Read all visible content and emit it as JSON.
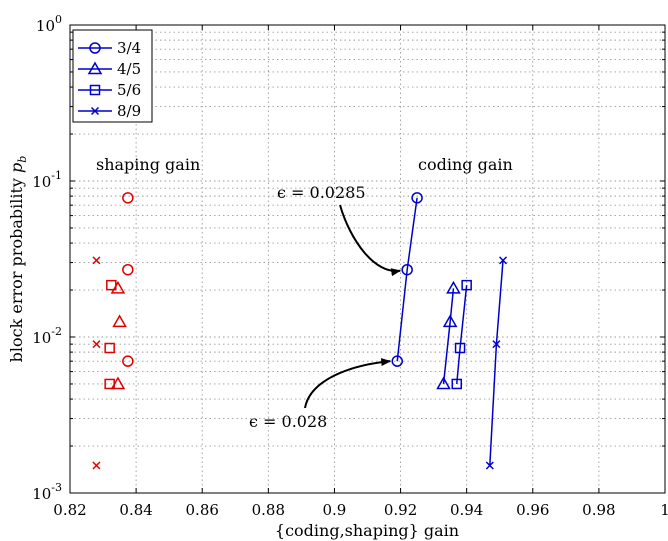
{
  "chart_data": {
    "type": "scatter",
    "xlabel": "{coding,shaping} gain",
    "ylabel": "block error probability",
    "ylabel_symbol": "p",
    "ylabel_sub": "b",
    "xlim": [
      0.82,
      1.0
    ],
    "ylim": [
      0.001,
      1
    ],
    "yscale": "log",
    "grid": true,
    "legend_position": "top-left",
    "x_ticks": [
      {
        "value": 0.82,
        "label": "0.82"
      },
      {
        "value": 0.84,
        "label": "0.84"
      },
      {
        "value": 0.86,
        "label": "0.86"
      },
      {
        "value": 0.88,
        "label": "0.88"
      },
      {
        "value": 0.9,
        "label": "0.9"
      },
      {
        "value": 0.92,
        "label": "0.92"
      },
      {
        "value": 0.94,
        "label": "0.94"
      },
      {
        "value": 0.96,
        "label": "0.96"
      },
      {
        "value": 0.98,
        "label": "0.98"
      },
      {
        "value": 1.0,
        "label": "1"
      }
    ],
    "y_ticks": [
      {
        "value": 0.001,
        "base": "10",
        "exp": "-3"
      },
      {
        "value": 0.01,
        "base": "10",
        "exp": "-2"
      },
      {
        "value": 0.1,
        "base": "10",
        "exp": "-1"
      },
      {
        "value": 1,
        "base": "10",
        "exp": "0"
      }
    ],
    "series": [
      {
        "name": "3/4",
        "marker": "circle",
        "coding": {
          "x": [
            0.919,
            0.922,
            0.925
          ],
          "y": [
            0.007,
            0.027,
            0.078
          ]
        },
        "shaping": {
          "x": [
            0.8375,
            0.8375,
            0.8375
          ],
          "y": [
            0.007,
            0.027,
            0.078
          ]
        }
      },
      {
        "name": "4/5",
        "marker": "triangle",
        "coding": {
          "x": [
            0.933,
            0.935,
            0.936
          ],
          "y": [
            0.005,
            0.0125,
            0.0205
          ]
        },
        "shaping": {
          "x": [
            0.8345,
            0.835,
            0.8345
          ],
          "y": [
            0.005,
            0.0125,
            0.0205
          ]
        }
      },
      {
        "name": "5/6",
        "marker": "square",
        "coding": {
          "x": [
            0.937,
            0.938,
            0.94
          ],
          "y": [
            0.005,
            0.0085,
            0.0215
          ]
        },
        "shaping": {
          "x": [
            0.832,
            0.832,
            0.8325
          ],
          "y": [
            0.005,
            0.0085,
            0.0215
          ]
        }
      },
      {
        "name": "8/9",
        "marker": "x",
        "coding": {
          "x": [
            0.947,
            0.949,
            0.951
          ],
          "y": [
            0.0015,
            0.009,
            0.031
          ]
        },
        "shaping": {
          "x": [
            0.828,
            0.828,
            0.828
          ],
          "y": [
            0.0015,
            0.009,
            0.031
          ]
        }
      }
    ],
    "annotations": {
      "shaping_label": "shaping gain",
      "coding_label": "coding gain",
      "eps_upper": "ϵ = 0.0285",
      "eps_lower": "ϵ = 0.028"
    },
    "colors": {
      "coding": "#0000cc",
      "shaping": "#e00000",
      "grid": "#9a9a9a"
    }
  }
}
